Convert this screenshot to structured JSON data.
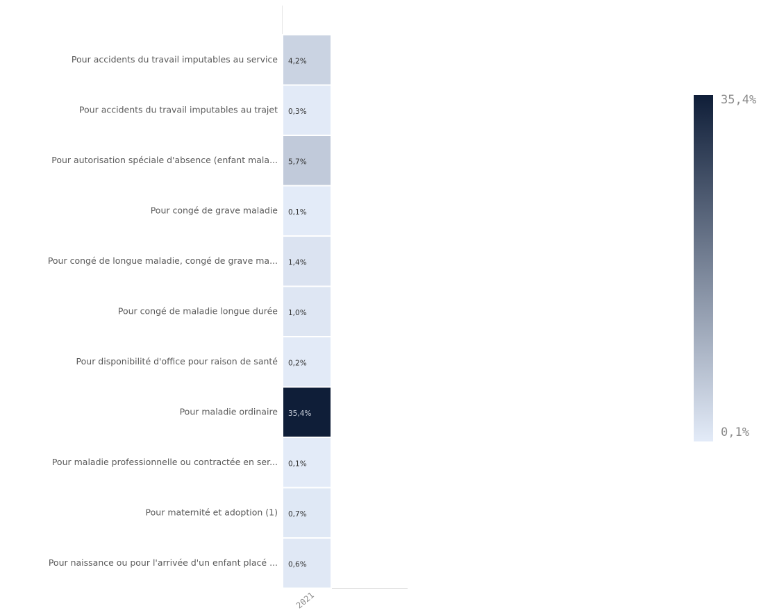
{
  "chart_data": {
    "type": "heatmap",
    "categories": [
      "Pour accidents du travail imputables au service",
      "Pour accidents du travail imputables au trajet",
      "Pour autorisation spéciale d'absence (enfant mala...",
      "Pour congé de grave maladie",
      "Pour congé de longue maladie, congé de grave ma...",
      "Pour congé de maladie longue durée",
      "Pour disponibilité d'office pour raison de santé",
      "Pour maladie ordinaire",
      "Pour maladie professionnelle ou contractée en ser...",
      "Pour maternité et adoption (1)",
      "Pour naissance ou pour l'arrivée d'un enfant placé ..."
    ],
    "x": [
      "2021"
    ],
    "values": [
      4.2,
      0.3,
      5.7,
      0.1,
      1.4,
      1.0,
      0.2,
      35.4,
      0.1,
      0.7,
      0.6
    ],
    "value_labels": [
      "4,2%",
      "0,3%",
      "5,7%",
      "0,1%",
      "1,4%",
      "1,0%",
      "0,2%",
      "35,4%",
      "0,1%",
      "0,7%",
      "0,6%"
    ],
    "clim": [
      0.1,
      35.4
    ],
    "cticks": [
      {
        "value": 35.4,
        "label": "35,4%"
      },
      {
        "value": 0.1,
        "label": "0,1%"
      }
    ],
    "colors": [
      "#e3ebf8",
      "#0f1e38"
    ]
  }
}
